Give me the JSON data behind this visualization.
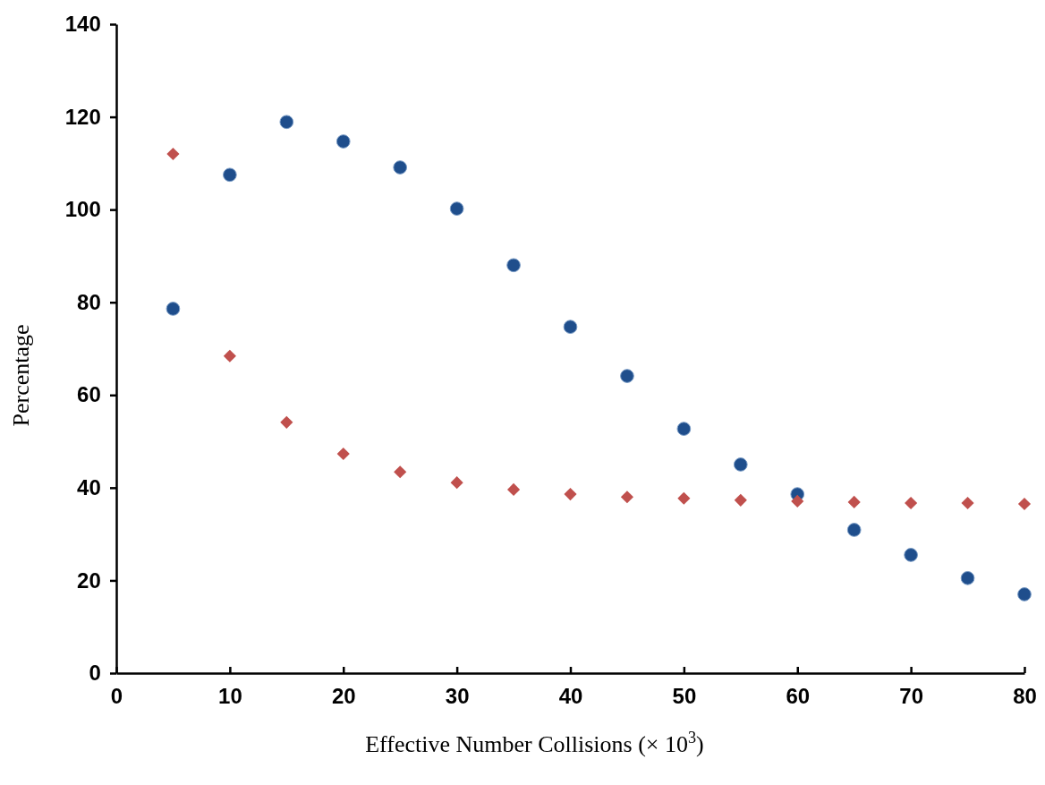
{
  "chart_data": {
    "type": "scatter",
    "xlabel": "Effective Number Collisions (× 10$^{3}$)",
    "ylabel": "Percentage",
    "x": [
      5,
      10,
      15,
      20,
      25,
      30,
      35,
      40,
      45,
      50,
      55,
      60,
      65,
      70,
      75,
      80
    ],
    "xlim": [
      0,
      80
    ],
    "xticks": [
      0,
      10,
      20,
      30,
      40,
      50,
      60,
      70,
      80
    ],
    "ylim": [
      0,
      140
    ],
    "yticks": [
      0,
      20,
      40,
      60,
      80,
      100,
      120,
      140
    ],
    "grid": false,
    "series": [
      {
        "color": "#1f4e8c",
        "marker": "circle",
        "values": [
          78.6,
          107.5,
          118.9,
          114.7,
          109.1,
          100.2,
          88.0,
          74.7,
          64.1,
          52.7,
          45.0,
          38.6,
          30.9,
          25.5,
          20.5,
          17.0
        ]
      },
      {
        "color": "#c0504d",
        "marker": "diamond",
        "values": [
          112.0,
          68.4,
          54.1,
          47.3,
          43.4,
          41.1,
          39.6,
          38.6,
          38.0,
          37.7,
          37.3,
          37.1,
          36.9,
          36.7,
          36.7,
          36.5
        ]
      }
    ]
  }
}
